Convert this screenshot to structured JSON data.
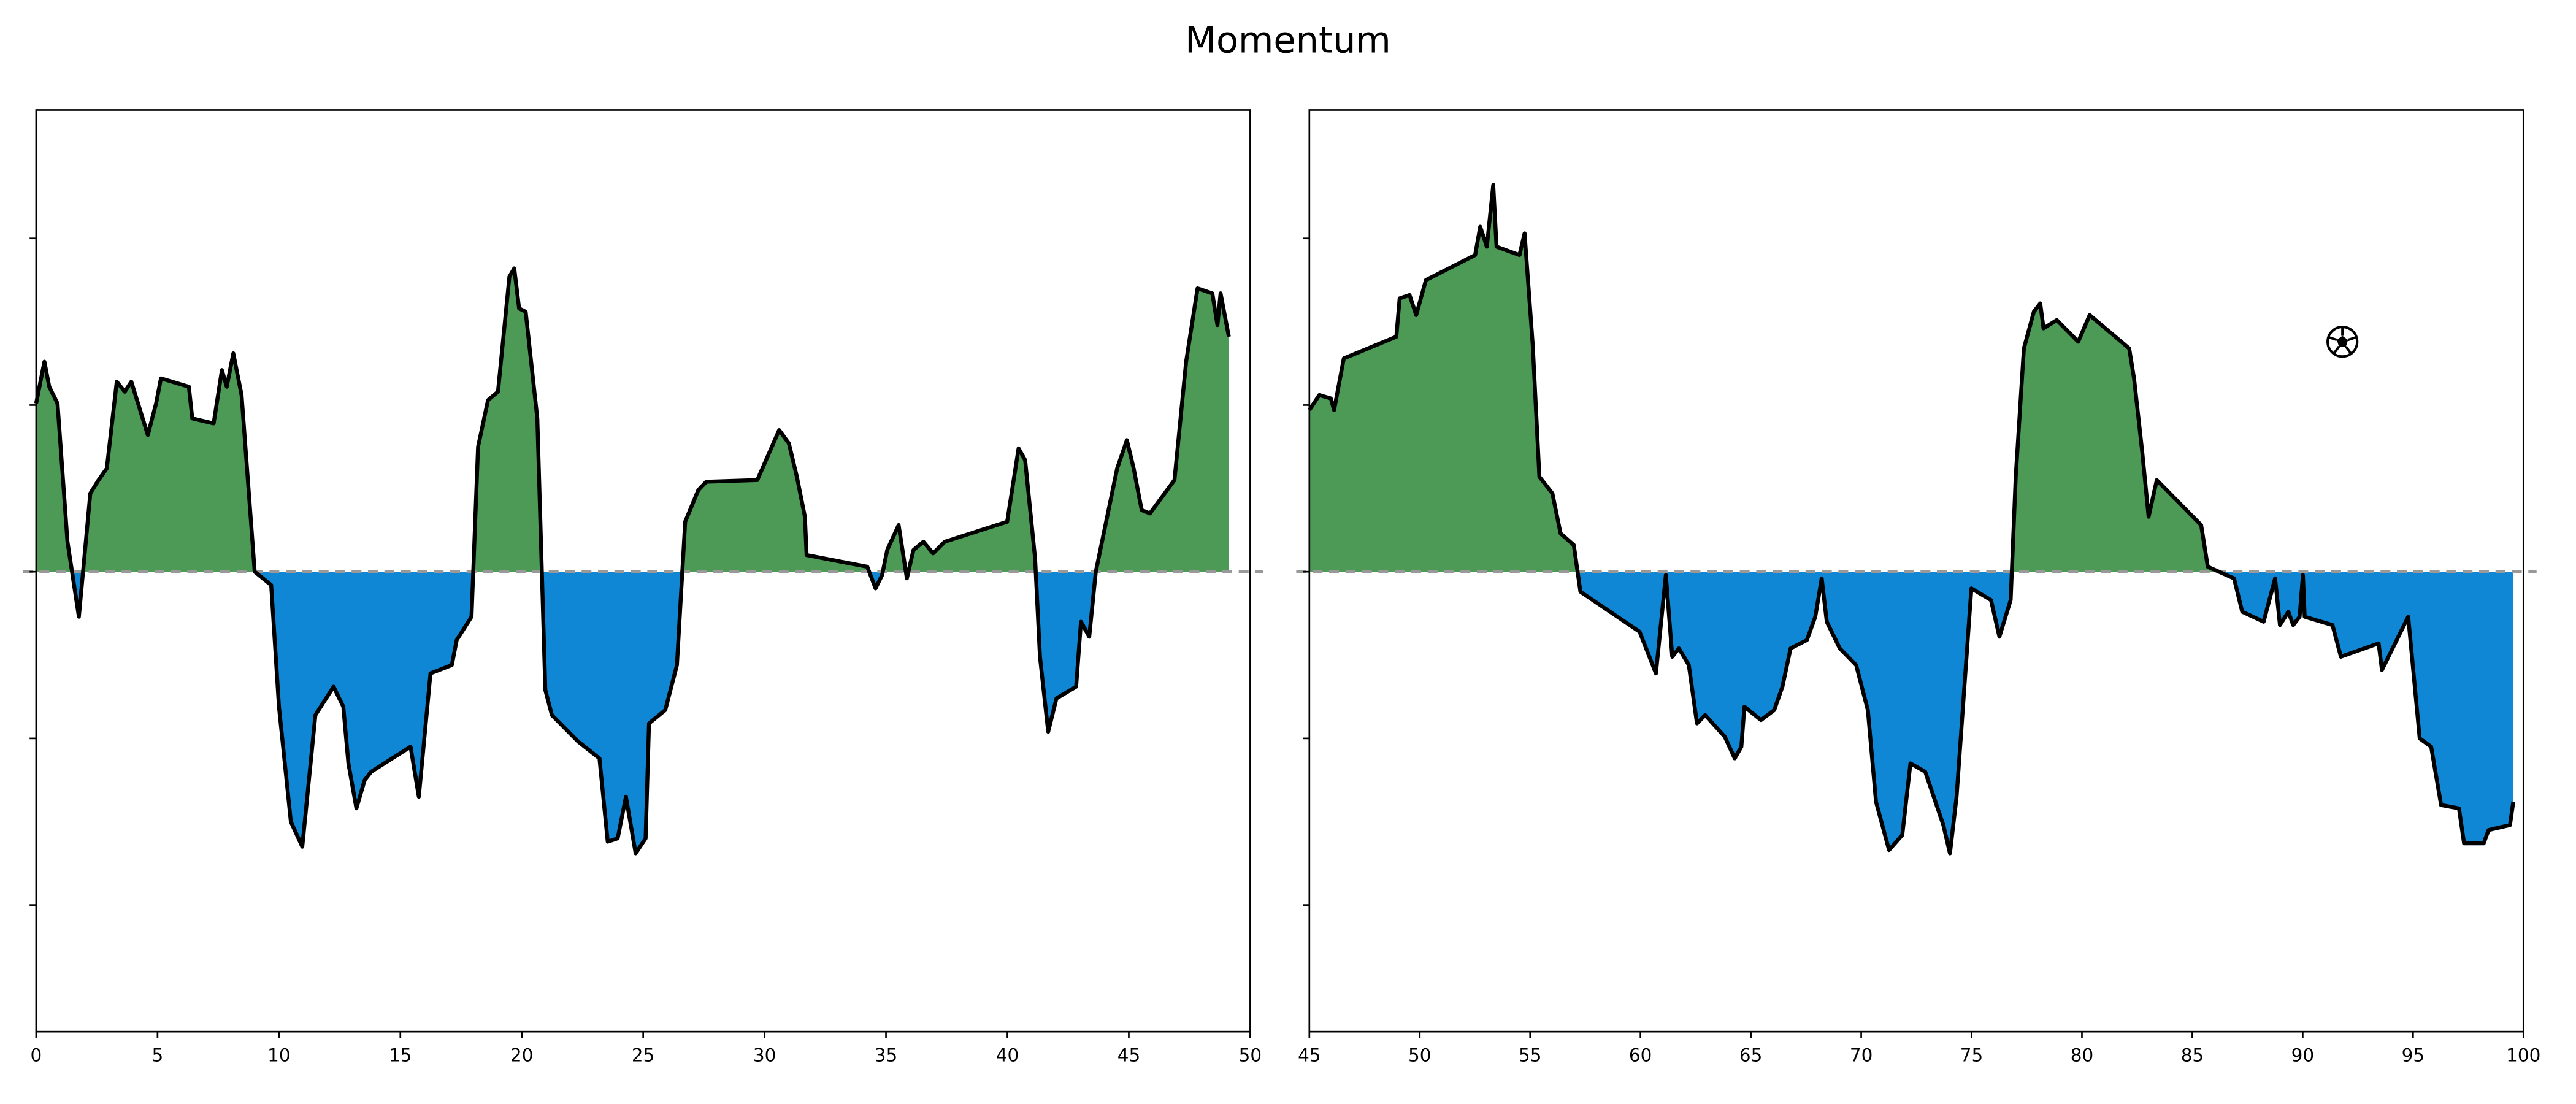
{
  "title": "Momentum",
  "chart_data": [
    {
      "type": "area",
      "x": [
        0,
        0.34,
        0.54,
        0.88,
        1.29,
        1.76,
        2.23,
        2.57,
        2.91,
        3.32,
        3.65,
        3.92,
        4.6,
        4.94,
        5.14,
        6.29,
        6.43,
        7.31,
        7.65,
        7.85,
        8.12,
        8.46,
        9.0,
        9.68,
        10.0,
        10.49,
        10.96,
        11.5,
        12.25,
        12.65,
        12.86,
        13.19,
        13.53,
        13.8,
        15.42,
        15.76,
        16.24,
        17.12,
        17.32,
        17.93,
        18.2,
        18.61,
        19.02,
        19.49,
        19.69,
        19.89,
        20.16,
        20.64,
        20.97,
        21.24,
        22.33,
        23.2,
        23.54,
        23.95,
        24.29,
        24.69,
        25.1,
        25.24,
        25.91,
        26.39,
        26.73,
        27.27,
        27.6,
        29.7,
        30.6,
        31.0,
        31.33,
        31.66,
        31.73,
        34.23,
        34.57,
        34.84,
        35.05,
        35.52,
        35.86,
        36.13,
        36.54,
        36.94,
        37.42,
        39.99,
        40.46,
        40.73,
        41.14,
        41.34,
        41.68,
        42.02,
        42.83,
        43.03,
        43.37,
        43.64,
        44.52,
        44.92,
        45.2,
        45.53,
        45.87,
        46.88,
        47.36,
        47.83,
        48.44,
        48.65,
        48.78,
        49.12
      ],
      "values": [
        1.01,
        1.26,
        1.11,
        1.01,
        0.18,
        -0.27,
        0.47,
        0.55,
        0.62,
        1.14,
        1.08,
        1.14,
        0.82,
        1.01,
        1.16,
        1.11,
        0.92,
        0.89,
        1.21,
        1.11,
        1.31,
        1.06,
        0,
        -0.08,
        -0.81,
        -1.5,
        -1.65,
        -0.86,
        -0.69,
        -0.81,
        -1.15,
        -1.42,
        -1.25,
        -1.2,
        -1.05,
        -1.35,
        -0.61,
        -0.56,
        -0.41,
        -0.27,
        0.75,
        1.03,
        1.08,
        1.77,
        1.82,
        1.58,
        1.56,
        0.92,
        -0.71,
        -0.86,
        -1.02,
        -1.12,
        -1.62,
        -1.6,
        -1.35,
        -1.69,
        -1.6,
        -0.91,
        -0.83,
        -0.56,
        0.3,
        0.49,
        0.54,
        0.55,
        0.85,
        0.77,
        0.57,
        0.33,
        0.1,
        0.03,
        -0.1,
        -0.02,
        0.13,
        0.28,
        -0.04,
        0.13,
        0.18,
        0.11,
        0.18,
        0.3,
        0.74,
        0.67,
        0.08,
        -0.51,
        -0.96,
        -0.76,
        -0.69,
        -0.3,
        -0.39,
        0,
        0.62,
        0.79,
        0.62,
        0.37,
        0.35,
        0.55,
        1.26,
        1.7,
        1.67,
        1.48,
        1.67,
        1.41
      ],
      "xlim": [
        0,
        50
      ],
      "xticks": [
        0,
        5,
        10,
        15,
        20,
        25,
        30,
        35,
        40,
        45,
        50
      ],
      "ylim": [
        -2.76,
        2.77
      ],
      "yticks": [
        -2,
        -1,
        0,
        1,
        2
      ],
      "positive_color": "#4c9a55",
      "negative_color": "#0f87d4",
      "line_color": "#000000",
      "zero_line": 0,
      "zero_line_color": "#999999"
    },
    {
      "type": "area",
      "x": [
        45,
        45.45,
        45.97,
        46.12,
        46.56,
        48.94,
        49.09,
        49.54,
        49.84,
        50.28,
        52.51,
        52.74,
        53.04,
        53.33,
        53.48,
        54.52,
        54.75,
        55.12,
        55.42,
        56.01,
        56.38,
        56.98,
        57.28,
        59.96,
        60.7,
        61.15,
        61.44,
        61.74,
        62.19,
        62.56,
        62.93,
        63.82,
        64.27,
        64.57,
        64.71,
        65.46,
        66.06,
        66.43,
        66.8,
        67.54,
        67.92,
        68.21,
        68.44,
        69.03,
        69.77,
        70.3,
        70.67,
        71.26,
        71.86,
        72.23,
        72.9,
        73.72,
        74.02,
        74.32,
        74.99,
        75.88,
        76.26,
        76.77,
        77.0,
        77.37,
        77.82,
        78.11,
        78.26,
        78.86,
        79.83,
        80.35,
        82.14,
        82.36,
        82.73,
        83.02,
        83.39,
        85.4,
        85.7,
        86.89,
        87.26,
        88.23,
        88.75,
        88.97,
        89.35,
        89.57,
        89.86,
        90.01,
        90.09,
        91.35,
        91.73,
        93.44,
        93.59,
        94.78,
        95.3,
        95.82,
        96.27,
        97.08,
        97.31,
        98.2,
        98.42,
        99.39,
        99.54
      ],
      "values": [
        0.97,
        1.06,
        1.04,
        0.97,
        1.28,
        1.41,
        1.64,
        1.66,
        1.54,
        1.75,
        1.9,
        2.07,
        1.95,
        2.32,
        1.95,
        1.9,
        2.03,
        1.36,
        0.57,
        0.47,
        0.23,
        0.16,
        -0.12,
        -0.36,
        -0.61,
        -0.02,
        -0.51,
        -0.46,
        -0.56,
        -0.91,
        -0.86,
        -0.99,
        -1.12,
        -1.05,
        -0.81,
        -0.89,
        -0.83,
        -0.69,
        -0.46,
        -0.41,
        -0.27,
        -0.04,
        -0.3,
        -0.46,
        -0.56,
        -0.83,
        -1.38,
        -1.67,
        -1.58,
        -1.15,
        -1.2,
        -1.52,
        -1.69,
        -1.35,
        -0.1,
        -0.17,
        -0.39,
        -0.17,
        0.57,
        1.34,
        1.56,
        1.61,
        1.46,
        1.51,
        1.38,
        1.54,
        1.34,
        1.16,
        0.72,
        0.33,
        0.55,
        0.28,
        0.03,
        -0.04,
        -0.24,
        -0.3,
        -0.04,
        -0.32,
        -0.24,
        -0.32,
        -0.27,
        -0.02,
        -0.27,
        -0.32,
        -0.51,
        -0.43,
        -0.59,
        -0.27,
        -1.0,
        -1.05,
        -1.4,
        -1.42,
        -1.63,
        -1.63,
        -1.55,
        -1.52,
        -1.38
      ],
      "xlim": [
        45,
        100
      ],
      "xticks": [
        45,
        50,
        55,
        60,
        65,
        70,
        75,
        80,
        85,
        90,
        95,
        100
      ],
      "ylim": [
        -2.76,
        2.77
      ],
      "yticks": [
        -2,
        -1,
        0,
        1,
        2
      ],
      "positive_color": "#4c9a55",
      "negative_color": "#0f87d4",
      "line_color": "#000000",
      "zero_line": 0,
      "zero_line_color": "#999999",
      "events": [
        {
          "x": 91.8,
          "y": 1.38
        }
      ]
    }
  ]
}
